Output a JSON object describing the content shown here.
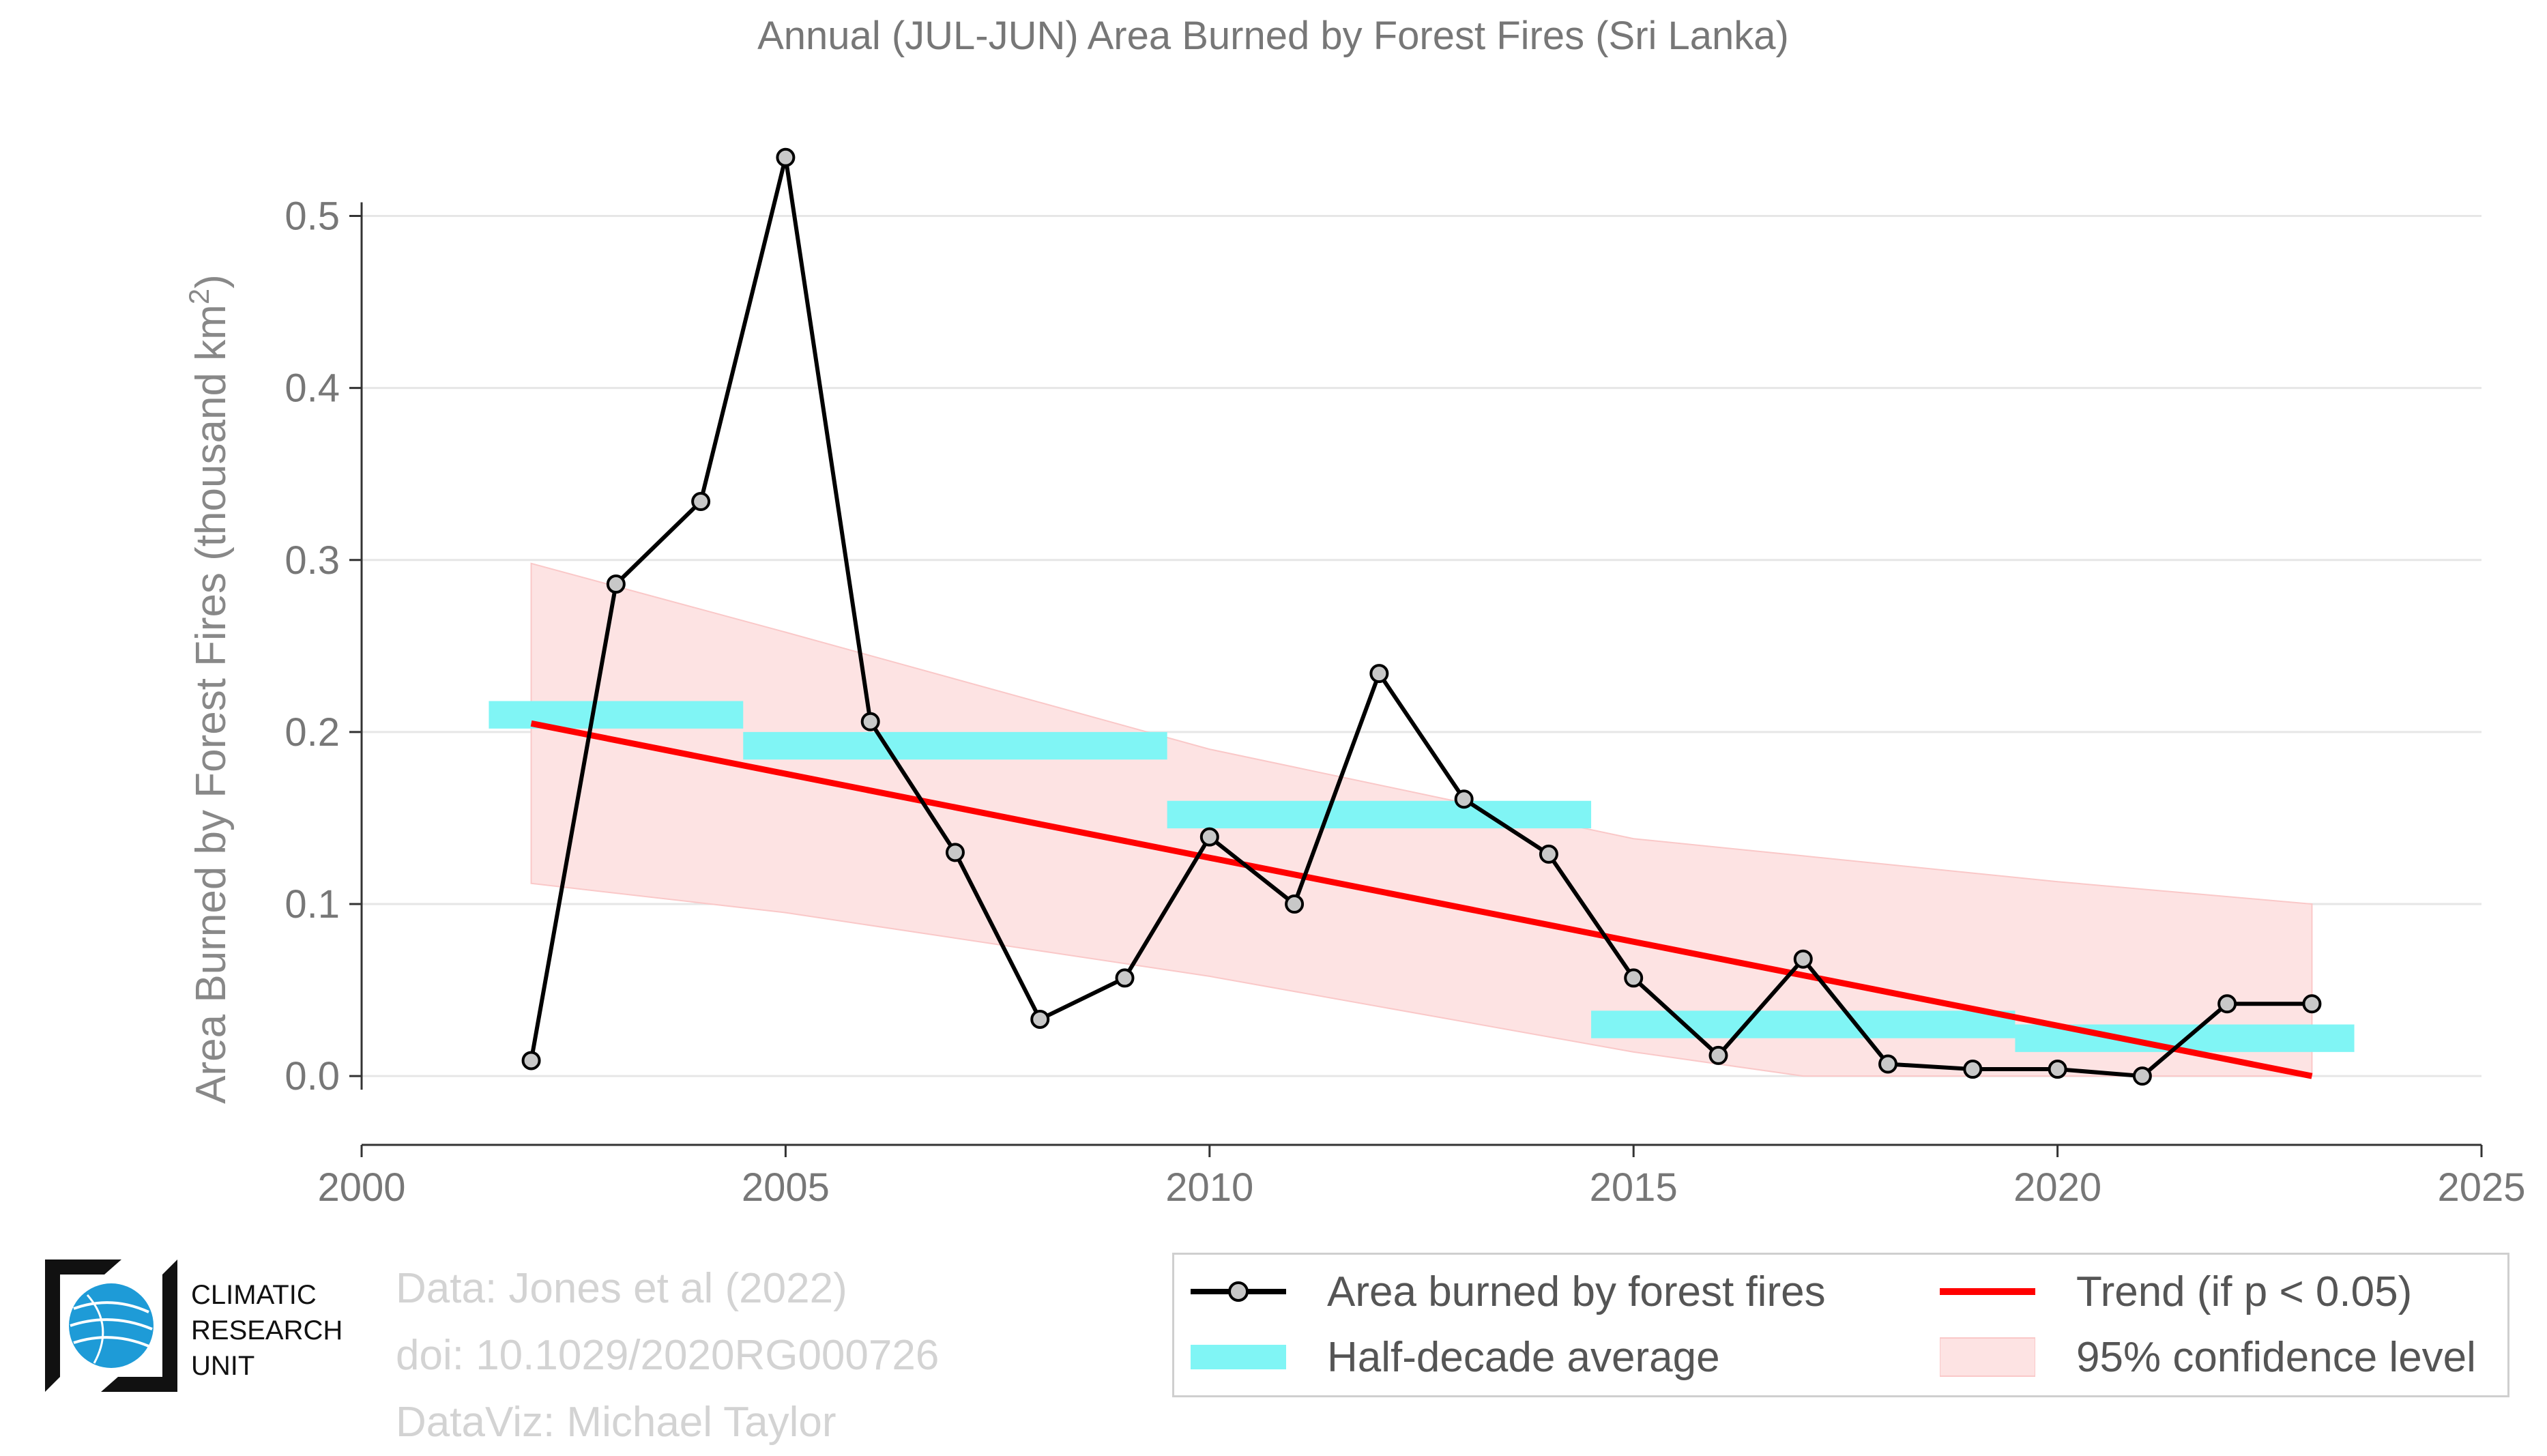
{
  "chart_data": {
    "type": "line",
    "title": "Annual (JUL-JUN) Area Burned by Forest Fires (Sri Lanka)",
    "xlabel": "",
    "ylabel": "Area Burned by Forest Fires (thousand km",
    "ylabel_sup": "2",
    "ylabel_end": ")",
    "xlim": [
      2000,
      2025
    ],
    "ylim": [
      -0.04,
      0.57
    ],
    "xticks": [
      2000,
      2005,
      2010,
      2015,
      2020,
      2025
    ],
    "yticks": [
      0.0,
      0.1,
      0.2,
      0.3,
      0.4,
      0.5
    ],
    "ytick_labels": [
      "0.0",
      "0.1",
      "0.2",
      "0.3",
      "0.4",
      "0.5"
    ],
    "grid": "horizontal",
    "legend_placement": "bottom-right",
    "series": [
      {
        "name": "Area burned by forest fires",
        "kind": "line-markers",
        "color": "#000000",
        "marker_fill": "#c8c8c8",
        "x": [
          2002,
          2003,
          2004,
          2005,
          2006,
          2007,
          2008,
          2009,
          2010,
          2011,
          2012,
          2013,
          2014,
          2015,
          2016,
          2017,
          2018,
          2019,
          2020,
          2021,
          2022,
          2023
        ],
        "y": [
          0.009,
          0.286,
          0.334,
          0.534,
          0.206,
          0.13,
          0.033,
          0.057,
          0.139,
          0.1,
          0.234,
          0.161,
          0.129,
          0.057,
          0.012,
          0.068,
          0.007,
          0.004,
          0.004,
          0.0,
          0.042,
          0.042
        ]
      },
      {
        "name": "Half-decade average",
        "kind": "bars",
        "color": "#80f5f5",
        "segments": [
          {
            "x0": 2001.5,
            "x1": 2004.5,
            "y": 0.21
          },
          {
            "x0": 2004.5,
            "x1": 2009.5,
            "y": 0.192
          },
          {
            "x0": 2009.5,
            "x1": 2014.5,
            "y": 0.152
          },
          {
            "x0": 2014.5,
            "x1": 2019.5,
            "y": 0.03
          },
          {
            "x0": 2019.5,
            "x1": 2023.5,
            "y": 0.022
          }
        ]
      },
      {
        "name": "Trend (if p < 0.05)",
        "kind": "trend",
        "color": "#ff0000",
        "x": [
          2002,
          2023
        ],
        "y": [
          0.205,
          0.0
        ]
      },
      {
        "name": "95% confidence level",
        "kind": "band",
        "color": "#fde3e3",
        "edge_color": "#fac8c8",
        "x": [
          2002,
          2005,
          2010,
          2015,
          2017,
          2020,
          2023
        ],
        "upper": [
          0.298,
          0.258,
          0.19,
          0.138,
          0.128,
          0.113,
          0.1
        ],
        "lower": [
          0.112,
          0.095,
          0.058,
          0.014,
          0.0,
          0.0,
          0.0
        ]
      }
    ]
  },
  "credits": {
    "line1": "Data: Jones et al (2022)",
    "line2": "doi: 10.1029/2020RG000726",
    "line3": "DataViz: Michael Taylor"
  },
  "logo": {
    "line1": "CLIMATIC",
    "line2": "RESEARCH",
    "line3": "UNIT"
  },
  "legend": {
    "item1": "Area burned by forest fires",
    "item2": "Half-decade average",
    "item3": "Trend (if p < 0.05)",
    "item4": "95% confidence level"
  },
  "colors": {
    "line": "#000000",
    "marker_fill": "#c8c8c8",
    "half_decade": "#80f5f5",
    "trend": "#ff0000",
    "confidence": "#fde3e3",
    "text": "#777777",
    "grid": "#e6e6e6"
  }
}
